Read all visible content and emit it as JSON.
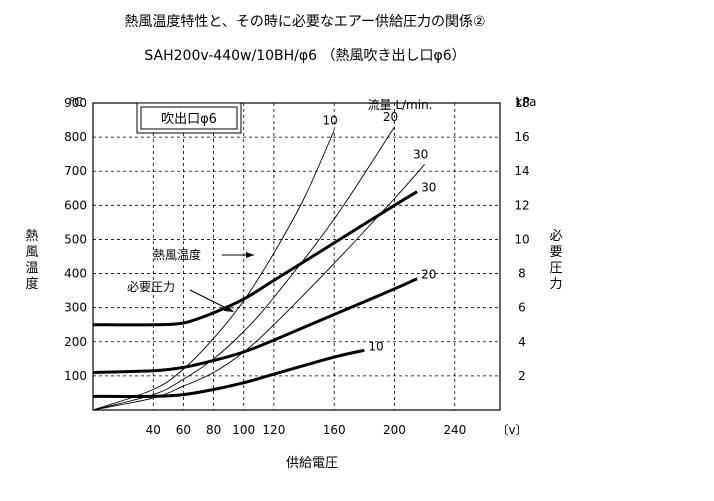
{
  "chart_data": {
    "type": "line",
    "title": "熱風温度特性と、その時に必要なエアー供給圧力の関係②",
    "subtitle": "SAH200v-440w/10BH/φ6 （熱風吹き出し口φ6）",
    "box_label": "吹出口φ6",
    "flow_legend": "流量 L/min.",
    "xlabel": "供給電圧",
    "x_unit": "〔v〕",
    "ylabel_left": "熱風温度",
    "y_unit_left": "℃",
    "ylabel_right": "必要圧力",
    "y_unit_right": "kPa",
    "x_ticks": [
      40,
      60,
      80,
      100,
      120,
      160,
      200,
      240
    ],
    "xlim": [
      0,
      270
    ],
    "y_left_ticks": [
      100,
      200,
      300,
      400,
      500,
      600,
      700,
      800,
      900
    ],
    "ylim_left": [
      0,
      900
    ],
    "y_right_ticks": [
      2,
      4,
      6,
      8,
      10,
      12,
      14,
      16,
      18
    ],
    "ylim_right": [
      0,
      18
    ],
    "grid": true,
    "annotations": [
      "熱風温度",
      "必要圧力"
    ],
    "series": [
      {
        "name": "10",
        "group": "熱風温度",
        "axis": "left",
        "x": [
          0,
          40,
          60,
          80,
          100,
          120,
          140,
          160
        ],
        "y": [
          0,
          60,
          120,
          210,
          320,
          460,
          620,
          820
        ]
      },
      {
        "name": "20",
        "group": "熱風温度",
        "axis": "left",
        "x": [
          0,
          40,
          60,
          80,
          100,
          120,
          160,
          200
        ],
        "y": [
          0,
          45,
          90,
          150,
          230,
          330,
          560,
          830
        ]
      },
      {
        "name": "30",
        "group": "熱風温度",
        "axis": "left",
        "x": [
          0,
          40,
          60,
          80,
          100,
          120,
          160,
          200,
          220
        ],
        "y": [
          0,
          35,
          70,
          110,
          170,
          250,
          430,
          620,
          720
        ]
      },
      {
        "name": "30",
        "group": "必要圧力",
        "axis": "right",
        "x": [
          0,
          40,
          60,
          80,
          100,
          120,
          160,
          200,
          215
        ],
        "y": [
          5.0,
          5.0,
          5.1,
          5.7,
          6.5,
          7.6,
          9.8,
          12.0,
          12.8
        ]
      },
      {
        "name": "20",
        "group": "必要圧力",
        "axis": "right",
        "x": [
          0,
          40,
          60,
          80,
          100,
          120,
          160,
          200,
          215
        ],
        "y": [
          2.2,
          2.3,
          2.5,
          2.9,
          3.4,
          4.1,
          5.6,
          7.1,
          7.7
        ]
      },
      {
        "name": "10",
        "group": "必要圧力",
        "axis": "right",
        "x": [
          0,
          40,
          60,
          80,
          100,
          120,
          160,
          180
        ],
        "y": [
          0.8,
          0.8,
          0.9,
          1.2,
          1.6,
          2.1,
          3.1,
          3.5
        ]
      }
    ]
  }
}
